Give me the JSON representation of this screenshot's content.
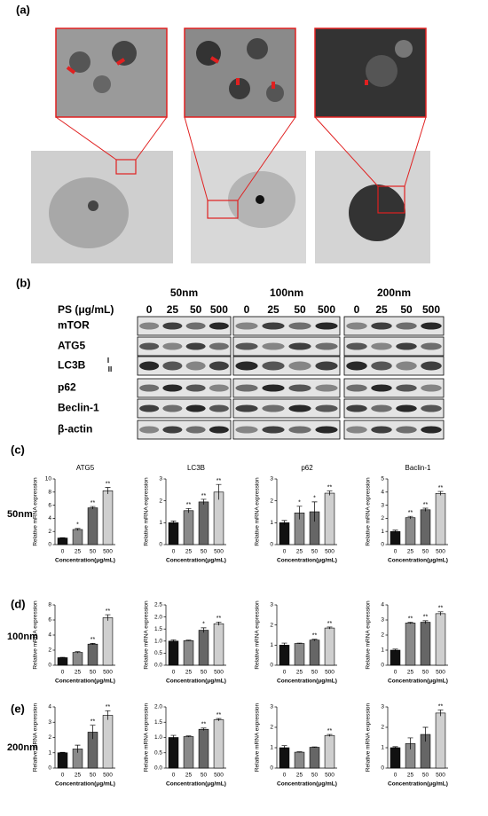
{
  "panels": {
    "a": "(a)",
    "b": "(b)"
  },
  "blot": {
    "sizes": [
      "50nm",
      "100nm",
      "200nm"
    ],
    "ps_label": "PS (μg/mL)",
    "lanes": [
      "0",
      "25",
      "50",
      "500"
    ],
    "proteins": [
      "mTOR",
      "ATG5",
      "LC3B",
      "p62",
      "Beclin-1",
      "β-actin"
    ],
    "lc3_forms": [
      "I",
      "II"
    ]
  },
  "rows": [
    {
      "panel": "(c)",
      "label": "50nm"
    },
    {
      "panel": "(d)",
      "label": "100nm"
    },
    {
      "panel": "(e)",
      "label": "200nm"
    }
  ],
  "chart_data": [
    {
      "type": "bar",
      "title": "ATG5",
      "ylabel": "Relative mRNA expression",
      "xlabel": "Concentration(μg/mL)",
      "categories": [
        "0",
        "25",
        "50",
        "500"
      ],
      "values": [
        1,
        2.3,
        5.6,
        8.2
      ],
      "errors": [
        0.05,
        0.15,
        0.2,
        0.5
      ],
      "significance": [
        null,
        "*",
        "**",
        "**"
      ],
      "colors": [
        "#111111",
        "#8a8a8a",
        "#666666",
        "#cfcfcf"
      ],
      "ylim": [
        0,
        10
      ],
      "yticks": [
        0,
        2,
        4,
        6,
        8,
        10
      ]
    },
    {
      "type": "bar",
      "title": "LC3B",
      "ylabel": "Relative mRNA expression",
      "xlabel": "Concentration(μg/mL)",
      "categories": [
        "0",
        "25",
        "50",
        "500"
      ],
      "values": [
        1,
        1.55,
        1.95,
        2.4
      ],
      "errors": [
        0.08,
        0.1,
        0.12,
        0.35
      ],
      "significance": [
        null,
        "**",
        "**",
        "**"
      ],
      "colors": [
        "#111111",
        "#8a8a8a",
        "#666666",
        "#cfcfcf"
      ],
      "ylim": [
        0,
        3
      ],
      "yticks": [
        0,
        1,
        2,
        3
      ]
    },
    {
      "type": "bar",
      "title": "p62",
      "ylabel": "Relative mRNA expression",
      "xlabel": "Concentration(μg/mL)",
      "categories": [
        "0",
        "25",
        "50",
        "500"
      ],
      "values": [
        1,
        1.45,
        1.5,
        2.35
      ],
      "errors": [
        0.1,
        0.3,
        0.45,
        0.1
      ],
      "significance": [
        null,
        "*",
        "*",
        "**"
      ],
      "colors": [
        "#111111",
        "#8a8a8a",
        "#666666",
        "#cfcfcf"
      ],
      "ylim": [
        0,
        3
      ],
      "yticks": [
        0,
        1,
        2,
        3
      ]
    },
    {
      "type": "bar",
      "title": "Baclin-1",
      "ylabel": "Relative mRNA expression",
      "xlabel": "Concentration(μg/mL)",
      "categories": [
        "0",
        "25",
        "50",
        "500"
      ],
      "values": [
        1,
        2.05,
        2.65,
        3.9
      ],
      "errors": [
        0.1,
        0.1,
        0.12,
        0.15
      ],
      "significance": [
        null,
        "**",
        "**",
        "**"
      ],
      "colors": [
        "#111111",
        "#8a8a8a",
        "#666666",
        "#cfcfcf"
      ],
      "ylim": [
        0,
        5
      ],
      "yticks": [
        0,
        1,
        2,
        3,
        4,
        5
      ]
    },
    {
      "type": "bar",
      "ylabel": "Relative mRNA expression",
      "xlabel": "Concentration(μg/mL)",
      "categories": [
        "0",
        "25",
        "50",
        "500"
      ],
      "values": [
        1,
        1.7,
        2.8,
        6.3
      ],
      "errors": [
        0.05,
        0.1,
        0.1,
        0.4
      ],
      "significance": [
        null,
        null,
        "**",
        "**"
      ],
      "colors": [
        "#111111",
        "#8a8a8a",
        "#666666",
        "#cfcfcf"
      ],
      "ylim": [
        0,
        8
      ],
      "yticks": [
        0,
        2,
        4,
        6,
        8
      ]
    },
    {
      "type": "bar",
      "ylabel": "Relative mRNA expression",
      "xlabel": "Concentration(μg/mL)",
      "categories": [
        "0",
        "25",
        "50",
        "500"
      ],
      "values": [
        1,
        1.02,
        1.45,
        1.72
      ],
      "errors": [
        0.05,
        0.02,
        0.1,
        0.07
      ],
      "significance": [
        null,
        null,
        "*",
        "**"
      ],
      "colors": [
        "#111111",
        "#8a8a8a",
        "#666666",
        "#cfcfcf"
      ],
      "ylim": [
        0,
        2.5
      ],
      "yticks": [
        {
          "value": 0,
          "label": "0.0"
        },
        0.5,
        {
          "value": 1,
          "label": "1.0"
        },
        1.5,
        {
          "value": 2,
          "label": "2.0"
        },
        2.5
      ]
    },
    {
      "type": "bar",
      "ylabel": "Relative mRNA expression",
      "xlabel": "Concentration(μg/mL)",
      "categories": [
        "0",
        "25",
        "50",
        "500"
      ],
      "values": [
        1,
        1.08,
        1.25,
        1.85
      ],
      "errors": [
        0.1,
        0.02,
        0.04,
        0.05
      ],
      "significance": [
        null,
        null,
        "**",
        "**"
      ],
      "colors": [
        "#111111",
        "#8a8a8a",
        "#666666",
        "#cfcfcf"
      ],
      "ylim": [
        0,
        3
      ],
      "yticks": [
        0,
        1,
        2,
        3
      ]
    },
    {
      "type": "bar",
      "ylabel": "Relative mRNA expression",
      "xlabel": "Concentration(μg/mL)",
      "categories": [
        "0",
        "25",
        "50",
        "500"
      ],
      "values": [
        1,
        2.8,
        2.85,
        3.42
      ],
      "errors": [
        0.07,
        0.05,
        0.1,
        0.12
      ],
      "significance": [
        null,
        "**",
        "**",
        "**"
      ],
      "colors": [
        "#111111",
        "#8a8a8a",
        "#666666",
        "#cfcfcf"
      ],
      "ylim": [
        0,
        4
      ],
      "yticks": [
        0,
        1,
        2,
        3,
        4
      ]
    },
    {
      "type": "bar",
      "ylabel": "Relative mRNA expression",
      "xlabel": "Concentration(μg/mL)",
      "categories": [
        "0",
        "25",
        "50",
        "500"
      ],
      "values": [
        1,
        1.25,
        2.35,
        3.45
      ],
      "errors": [
        0.03,
        0.25,
        0.45,
        0.3
      ],
      "significance": [
        null,
        null,
        "**",
        "**"
      ],
      "colors": [
        "#111111",
        "#8a8a8a",
        "#666666",
        "#cfcfcf"
      ],
      "ylim": [
        0,
        4
      ],
      "yticks": [
        0,
        1,
        2,
        3,
        4
      ]
    },
    {
      "type": "bar",
      "ylabel": "Relative mRNA expression",
      "xlabel": "Concentration(μg/mL)",
      "categories": [
        "0",
        "25",
        "50",
        "500"
      ],
      "values": [
        1,
        1.03,
        1.27,
        1.58
      ],
      "errors": [
        0.07,
        0.02,
        0.04,
        0.04
      ],
      "significance": [
        null,
        null,
        "**",
        "**"
      ],
      "colors": [
        "#111111",
        "#8a8a8a",
        "#666666",
        "#cfcfcf"
      ],
      "ylim": [
        0,
        2
      ],
      "yticks": [
        {
          "value": 0,
          "label": "0.0"
        },
        0.5,
        {
          "value": 1,
          "label": "1.0"
        },
        1.5,
        {
          "value": 2,
          "label": "2.0"
        }
      ]
    },
    {
      "type": "bar",
      "ylabel": "Relative mRNA expression",
      "xlabel": "Concentration(μg/mL)",
      "categories": [
        "0",
        "25",
        "50",
        "500"
      ],
      "values": [
        1,
        0.78,
        1.02,
        1.6
      ],
      "errors": [
        0.1,
        0.02,
        0.02,
        0.05
      ],
      "significance": [
        null,
        null,
        null,
        "**"
      ],
      "colors": [
        "#111111",
        "#8a8a8a",
        "#666666",
        "#cfcfcf"
      ],
      "ylim": [
        0,
        3
      ],
      "yticks": [
        0,
        1,
        2,
        3
      ]
    },
    {
      "type": "bar",
      "ylabel": "Relative mRNA expression",
      "xlabel": "Concentration(μg/mL)",
      "categories": [
        "0",
        "25",
        "50",
        "500"
      ],
      "values": [
        1,
        1.2,
        1.65,
        2.7
      ],
      "errors": [
        0.05,
        0.28,
        0.35,
        0.15
      ],
      "significance": [
        null,
        null,
        null,
        "**"
      ],
      "colors": [
        "#111111",
        "#8a8a8a",
        "#666666",
        "#cfcfcf"
      ],
      "ylim": [
        0,
        3
      ],
      "yticks": [
        0,
        1,
        2,
        3
      ]
    }
  ]
}
